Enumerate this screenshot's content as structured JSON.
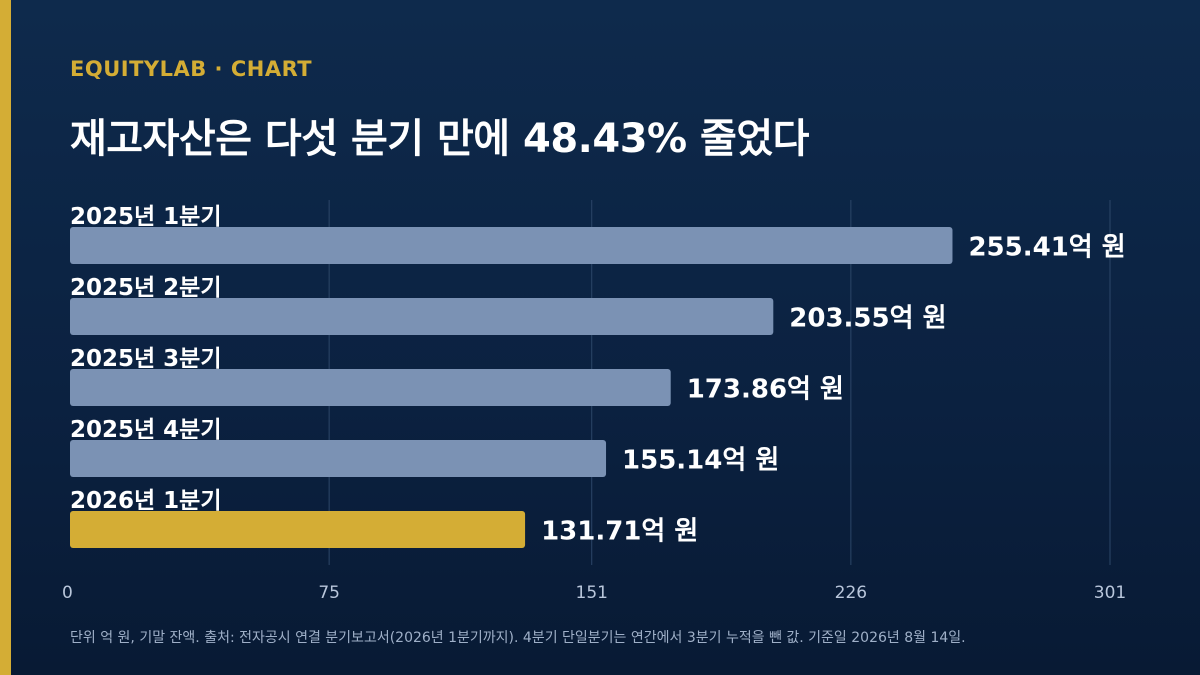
{
  "brand": "EQUITYLAB · CHART",
  "title": "재고자산은 다섯 분기 만에 48.43% 줄었다",
  "footnote": "단위 억 원, 기말 잔액. 출처: 전자공시 연결 분기보고서(2026년 1분기까지). 4분기 단일분기는 연간에서 3분기 누적을 뺀 값. 기준일 2026년 8월 14일.",
  "colors": {
    "bar_default": "#7b92b4",
    "bar_highlight": "#d4ad35",
    "accent": "#d4ad35",
    "gridline": "#2c4668"
  },
  "chart_data": {
    "type": "bar",
    "orientation": "horizontal",
    "categories": [
      "2025년 1분기",
      "2025년 2분기",
      "2025년 3분기",
      "2025년 4분기",
      "2026년 1분기"
    ],
    "values": [
      255.41,
      203.55,
      173.86,
      155.14,
      131.71
    ],
    "value_labels": [
      "255.41억 원",
      "203.55억 원",
      "173.86억 원",
      "155.14억 원",
      "131.71억 원"
    ],
    "highlight_index": 4,
    "xlim": [
      0,
      301
    ],
    "xticks": [
      0,
      75,
      151,
      226,
      301
    ],
    "grid": true
  }
}
